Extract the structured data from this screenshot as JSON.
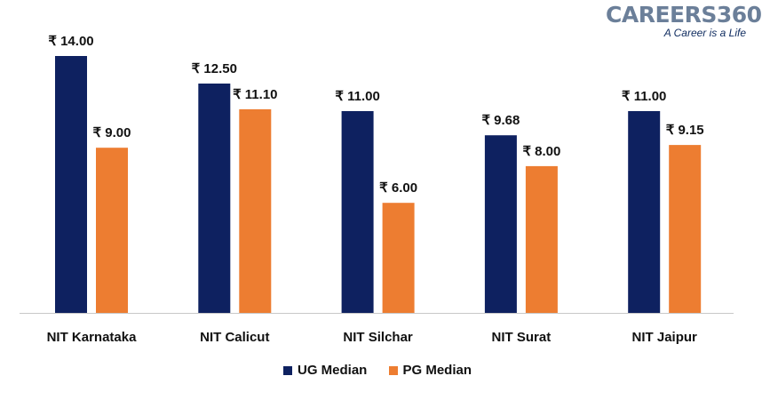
{
  "logo": {
    "text": "CAREERS360",
    "tagline": "A Career is a Life"
  },
  "chart_data": {
    "type": "bar",
    "categories": [
      "NIT Karnataka",
      "NIT Calicut",
      "NIT Silchar",
      "NIT Surat",
      "NIT Jaipur"
    ],
    "series": [
      {
        "name": "UG Median",
        "color": "#0e2160",
        "values": [
          14.0,
          12.5,
          11.0,
          9.68,
          11.0
        ],
        "labels": [
          "₹ 14.00",
          "₹ 12.50",
          "₹ 11.00",
          "₹ 9.68",
          "₹ 11.00"
        ]
      },
      {
        "name": "PG Median",
        "color": "#ed7d31",
        "values": [
          9.0,
          11.1,
          6.0,
          8.0,
          9.15
        ],
        "labels": [
          "₹ 9.00",
          "₹ 11.10",
          "₹ 6.00",
          "₹ 8.00",
          "₹ 9.15"
        ]
      }
    ],
    "title": "",
    "xlabel": "",
    "ylabel": "",
    "ylim": [
      0,
      18
    ],
    "grid": false,
    "legend_position": "bottom"
  }
}
